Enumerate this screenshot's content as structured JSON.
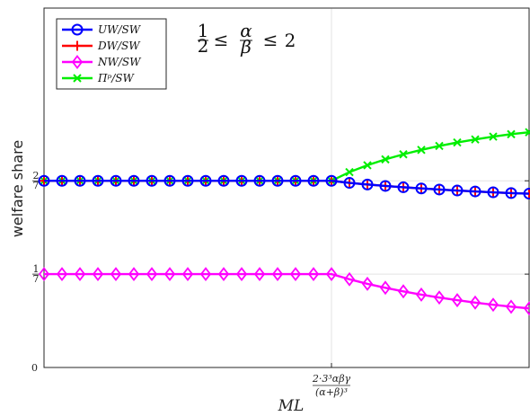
{
  "chart_data": {
    "type": "line",
    "annotation": {
      "lhs": "1",
      "lhs_den": "2",
      "rel1": "≤",
      "mid_num": "α",
      "mid_den": "β",
      "rel2": "≤",
      "rhs": "2"
    },
    "ylabel": "welfare share",
    "xlabel": "ML",
    "ylim": [
      0,
      0.55
    ],
    "xlim": [
      0,
      27
    ],
    "yticks": [
      {
        "value": 0,
        "num": "0",
        "den": ""
      },
      {
        "value": 0.142857,
        "num": "1",
        "den": "7"
      },
      {
        "value": 0.285714,
        "num": "2",
        "den": "7"
      }
    ],
    "xticks": [
      {
        "value": 16,
        "num": "2·3³αβγ",
        "den": "(α+β)³"
      }
    ],
    "grid": true,
    "legend_position": "top-left",
    "x": [
      0,
      1,
      2,
      3,
      4,
      5,
      6,
      7,
      8,
      9,
      10,
      11,
      12,
      13,
      14,
      15,
      16,
      17,
      18,
      19,
      20,
      21,
      22,
      23,
      24,
      25,
      26,
      27
    ],
    "series": [
      {
        "name": "UW/SW",
        "color": "#0000ff",
        "marker": "circle",
        "values": [
          0.2857,
          0.2857,
          0.2857,
          0.2857,
          0.2857,
          0.2857,
          0.2857,
          0.2857,
          0.2857,
          0.2857,
          0.2857,
          0.2857,
          0.2857,
          0.2857,
          0.2857,
          0.2857,
          0.2857,
          0.2825,
          0.28,
          0.2778,
          0.2758,
          0.274,
          0.2723,
          0.2708,
          0.2694,
          0.2681,
          0.2669,
          0.266
        ]
      },
      {
        "name": "DW/SW",
        "color": "#ff0000",
        "marker": "plus",
        "values": [
          0.2857,
          0.2857,
          0.2857,
          0.2857,
          0.2857,
          0.2857,
          0.2857,
          0.2857,
          0.2857,
          0.2857,
          0.2857,
          0.2857,
          0.2857,
          0.2857,
          0.2857,
          0.2857,
          0.2857,
          0.2825,
          0.28,
          0.2778,
          0.2758,
          0.274,
          0.2723,
          0.2708,
          0.2694,
          0.2681,
          0.2669,
          0.266
        ]
      },
      {
        "name": "NW/SW",
        "color": "#ff00ff",
        "marker": "diamond",
        "values": [
          0.1429,
          0.1429,
          0.1429,
          0.1429,
          0.1429,
          0.1429,
          0.1429,
          0.1429,
          0.1429,
          0.1429,
          0.1429,
          0.1429,
          0.1429,
          0.1429,
          0.1429,
          0.1429,
          0.1429,
          0.135,
          0.128,
          0.122,
          0.1165,
          0.1115,
          0.107,
          0.103,
          0.0993,
          0.096,
          0.093,
          0.0904
        ]
      },
      {
        "name": "Πᵖ/SW",
        "color": "#00ee00",
        "marker": "x",
        "values": [
          0.2857,
          0.2857,
          0.2857,
          0.2857,
          0.2857,
          0.2857,
          0.2857,
          0.2857,
          0.2857,
          0.2857,
          0.2857,
          0.2857,
          0.2857,
          0.2857,
          0.2857,
          0.2857,
          0.2857,
          0.299,
          0.3095,
          0.3185,
          0.3262,
          0.333,
          0.339,
          0.3443,
          0.349,
          0.3533,
          0.357,
          0.36
        ]
      }
    ]
  }
}
